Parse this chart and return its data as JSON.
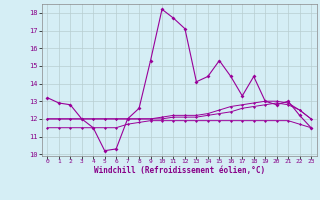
{
  "xlabel": "Windchill (Refroidissement éolien,°C)",
  "hours": [
    0,
    1,
    2,
    3,
    4,
    5,
    6,
    7,
    8,
    9,
    10,
    11,
    12,
    13,
    14,
    15,
    16,
    17,
    18,
    19,
    20,
    21,
    22,
    23
  ],
  "line1": [
    13.2,
    12.9,
    12.8,
    12.0,
    11.5,
    10.2,
    10.3,
    12.0,
    12.6,
    15.3,
    18.2,
    17.7,
    17.1,
    14.1,
    14.4,
    15.3,
    14.4,
    13.3,
    14.4,
    13.0,
    12.8,
    13.0,
    12.2,
    11.5
  ],
  "line2": [
    11.5,
    11.5,
    11.5,
    11.5,
    11.5,
    11.5,
    11.5,
    11.7,
    11.8,
    11.9,
    11.9,
    11.9,
    11.9,
    11.9,
    11.9,
    11.9,
    11.9,
    11.9,
    11.9,
    11.9,
    11.9,
    11.9,
    11.7,
    11.5
  ],
  "line3": [
    12.0,
    12.0,
    12.0,
    12.0,
    12.0,
    12.0,
    12.0,
    12.0,
    12.0,
    12.0,
    12.0,
    12.1,
    12.1,
    12.1,
    12.2,
    12.3,
    12.4,
    12.6,
    12.7,
    12.8,
    12.9,
    12.8,
    12.5,
    12.0
  ],
  "line4": [
    12.0,
    12.0,
    12.0,
    12.0,
    12.0,
    12.0,
    12.0,
    12.0,
    12.0,
    12.0,
    12.1,
    12.2,
    12.2,
    12.2,
    12.3,
    12.5,
    12.7,
    12.8,
    12.9,
    13.0,
    13.0,
    12.9,
    12.5,
    12.0
  ],
  "line_color": "#990099",
  "bg_color": "#d5eef5",
  "grid_color": "#b8cdd0",
  "ylim": [
    9.9,
    18.5
  ],
  "xlim": [
    -0.5,
    23.5
  ],
  "yticks": [
    10,
    11,
    12,
    13,
    14,
    15,
    16,
    17,
    18
  ],
  "xticks": [
    0,
    1,
    2,
    3,
    4,
    5,
    6,
    7,
    8,
    9,
    10,
    11,
    12,
    13,
    14,
    15,
    16,
    17,
    18,
    19,
    20,
    21,
    22,
    23
  ]
}
